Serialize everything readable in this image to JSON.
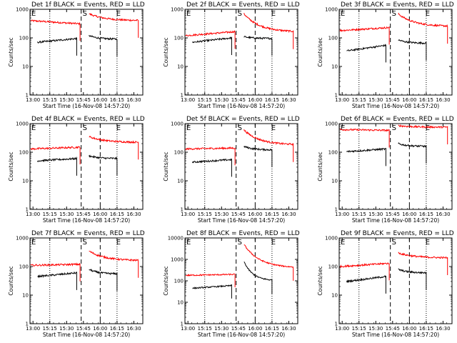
{
  "figure": {
    "background": "#ffffff",
    "event_color": "#000000",
    "lld_color": "#ff0000"
  },
  "chart_data": [
    {
      "type": "line",
      "title": "Det 1f BLACK = Events, RED = LLD",
      "xlabel": "Start Time (16-Nov-08 14:57:20)",
      "ylabel": "Counts/sec",
      "yscale": "log",
      "ylim": [
        1,
        1000
      ],
      "ytick_labels": [
        "1",
        "10",
        "100",
        "1000"
      ],
      "xtick_labels": [
        "13:00",
        "15:15",
        "15:30",
        "15:45",
        "16:00",
        "16:15",
        "16:30"
      ],
      "markers": [
        {
          "label": "E",
          "x": "14:57:20"
        },
        {
          "label": "S",
          "x": "15:43"
        },
        {
          "label": "E",
          "x": "16:13"
        }
      ],
      "series": [
        {
          "name": "RED = LLD",
          "color": "#ff0000",
          "segments": [
            [
              [
                "14:58",
                400
              ],
              [
                "15:42",
                310
              ]
            ],
            [
              [
                "15:50",
                700
              ],
              [
                "16:34",
                400
              ]
            ]
          ]
        },
        {
          "name": "BLACK = Events",
          "color": "#000000",
          "segments": [
            [
              [
                "15:04",
                70
              ],
              [
                "15:39",
                95
              ]
            ],
            [
              [
                "15:50",
                120
              ],
              [
                "16:15",
                90
              ]
            ]
          ]
        }
      ]
    },
    {
      "type": "line",
      "title": "Det 2f BLACK = Events, RED = LLD",
      "xlabel": "Start Time (16-Nov-08 14:57:20)",
      "ylabel": "Counts/sec",
      "yscale": "log",
      "ylim": [
        1,
        1000
      ],
      "ytick_labels": [
        "1",
        "10",
        "100",
        "1000"
      ],
      "xtick_labels": [
        "13:00",
        "15:15",
        "15:30",
        "15:45",
        "16:00",
        "16:15",
        "16:30"
      ],
      "markers": [
        {
          "label": "E",
          "x": "14:57:20"
        },
        {
          "label": "S",
          "x": "15:43"
        },
        {
          "label": "E",
          "x": "16:13"
        }
      ],
      "series": [
        {
          "name": "RED = LLD",
          "color": "#ff0000",
          "segments": [
            [
              [
                "14:58",
                120
              ],
              [
                "15:42",
                165
              ]
            ],
            [
              [
                "15:50",
                700
              ],
              [
                "16:34",
                160
              ]
            ]
          ]
        },
        {
          "name": "BLACK = Events",
          "color": "#000000",
          "segments": [
            [
              [
                "15:04",
                70
              ],
              [
                "15:39",
                100
              ]
            ],
            [
              [
                "15:50",
                110
              ],
              [
                "16:15",
                95
              ]
            ]
          ]
        }
      ]
    },
    {
      "type": "line",
      "title": "Det 3f BLACK = Events, RED = LLD",
      "xlabel": "Start Time (16-Nov-08 14:57:20)",
      "ylabel": "Counts/sec",
      "yscale": "log",
      "ylim": [
        1,
        1000
      ],
      "ytick_labels": [
        "1",
        "10",
        "100",
        "1000"
      ],
      "xtick_labels": [
        "13:00",
        "15:15",
        "15:30",
        "15:45",
        "16:00",
        "16:15",
        "16:30"
      ],
      "markers": [
        {
          "label": "E",
          "x": "14:57:20"
        },
        {
          "label": "S",
          "x": "15:43"
        },
        {
          "label": "E",
          "x": "16:13"
        }
      ],
      "series": [
        {
          "name": "RED = LLD",
          "color": "#ff0000",
          "segments": [
            [
              [
                "14:58",
                180
              ],
              [
                "15:42",
                230
              ]
            ],
            [
              [
                "15:50",
                700
              ],
              [
                "16:34",
                250
              ]
            ]
          ]
        },
        {
          "name": "BLACK = Events",
          "color": "#000000",
          "segments": [
            [
              [
                "15:04",
                35
              ],
              [
                "15:39",
                55
              ]
            ],
            [
              [
                "15:50",
                85
              ],
              [
                "16:15",
                65
              ]
            ]
          ]
        }
      ]
    },
    {
      "type": "line",
      "title": "Det 4f BLACK = Events, RED = LLD",
      "xlabel": "Start Time (16-Nov-08 14:57:20)",
      "ylabel": "Counts/sec",
      "yscale": "log",
      "ylim": [
        1,
        1000
      ],
      "ytick_labels": [
        "1",
        "10",
        "100",
        "1000"
      ],
      "xtick_labels": [
        "13:00",
        "15:15",
        "15:30",
        "15:45",
        "16:00",
        "16:15",
        "16:30"
      ],
      "markers": [
        {
          "label": "E",
          "x": "14:57:20"
        },
        {
          "label": "S",
          "x": "15:43"
        },
        {
          "label": "E",
          "x": "16:13"
        }
      ],
      "series": [
        {
          "name": "RED = LLD",
          "color": "#ff0000",
          "segments": [
            [
              [
                "14:58",
                130
              ],
              [
                "15:42",
                150
              ]
            ],
            [
              [
                "15:50",
                350
              ],
              [
                "16:34",
                220
              ]
            ]
          ]
        },
        {
          "name": "BLACK = Events",
          "color": "#000000",
          "segments": [
            [
              [
                "15:04",
                50
              ],
              [
                "15:39",
                60
              ]
            ],
            [
              [
                "15:50",
                75
              ],
              [
                "16:15",
                60
              ]
            ]
          ]
        }
      ]
    },
    {
      "type": "line",
      "title": "Det 5f BLACK = Events, RED = LLD",
      "xlabel": "Start Time (16-Nov-08 14:57:20)",
      "ylabel": "Counts/sec",
      "yscale": "log",
      "ylim": [
        1,
        1000
      ],
      "ytick_labels": [
        "1",
        "10",
        "100",
        "1000"
      ],
      "xtick_labels": [
        "13:00",
        "15:15",
        "15:30",
        "15:45",
        "16:00",
        "16:15",
        "16:30"
      ],
      "markers": [
        {
          "label": "E",
          "x": "14:57:20"
        },
        {
          "label": "S",
          "x": "15:43"
        },
        {
          "label": "E",
          "x": "16:13"
        }
      ],
      "series": [
        {
          "name": "RED = LLD",
          "color": "#ff0000",
          "segments": [
            [
              [
                "14:58",
                130
              ],
              [
                "15:42",
                140
              ]
            ],
            [
              [
                "15:50",
                600
              ],
              [
                "16:34",
                180
              ]
            ]
          ]
        },
        {
          "name": "BLACK = Events",
          "color": "#000000",
          "segments": [
            [
              [
                "15:04",
                45
              ],
              [
                "15:39",
                55
              ]
            ],
            [
              [
                "15:50",
                160
              ],
              [
                "16:15",
                120
              ]
            ]
          ]
        }
      ]
    },
    {
      "type": "line",
      "title": "Det 6f BLACK = Events, RED = LLD",
      "xlabel": "Start Time (16-Nov-08 14:57:20)",
      "ylabel": "Counts/sec",
      "yscale": "log",
      "ylim": [
        1,
        1000
      ],
      "ytick_labels": [
        "1",
        "10",
        "100",
        "1000"
      ],
      "xtick_labels": [
        "13:00",
        "15:15",
        "15:30",
        "15:45",
        "16:00",
        "16:15",
        "16:30"
      ],
      "markers": [
        {
          "label": "E",
          "x": "14:57:20"
        },
        {
          "label": "S",
          "x": "15:43"
        },
        {
          "label": "E",
          "x": "16:13"
        }
      ],
      "series": [
        {
          "name": "RED = LLD",
          "color": "#ff0000",
          "segments": [
            [
              [
                "14:58",
                620
              ],
              [
                "15:42",
                580
              ]
            ],
            [
              [
                "15:50",
                850
              ],
              [
                "16:34",
                750
              ]
            ]
          ]
        },
        {
          "name": "BLACK = Events",
          "color": "#000000",
          "segments": [
            [
              [
                "15:04",
                105
              ],
              [
                "15:39",
                130
              ]
            ],
            [
              [
                "15:50",
                200
              ],
              [
                "16:15",
                160
              ]
            ]
          ]
        }
      ]
    },
    {
      "type": "line",
      "title": "Det 7f BLACK = Events, RED = LLD",
      "xlabel": "Start Time (16-Nov-08 14:57:20)",
      "ylabel": "Counts/sec",
      "yscale": "log",
      "ylim": [
        1,
        1000
      ],
      "ytick_labels": [
        "1",
        "10",
        "100",
        "1000"
      ],
      "xtick_labels": [
        "13:00",
        "15:15",
        "15:30",
        "15:45",
        "16:00",
        "16:15",
        "16:30"
      ],
      "markers": [
        {
          "label": "E",
          "x": "14:57:20"
        },
        {
          "label": "S",
          "x": "15:43"
        },
        {
          "label": "E",
          "x": "16:13"
        }
      ],
      "series": [
        {
          "name": "RED = LLD",
          "color": "#ff0000",
          "segments": [
            [
              [
                "14:58",
                110
              ],
              [
                "15:42",
                120
              ]
            ],
            [
              [
                "15:50",
                350
              ],
              [
                "16:34",
                160
              ]
            ]
          ]
        },
        {
          "name": "BLACK = Events",
          "color": "#000000",
          "segments": [
            [
              [
                "15:04",
                45
              ],
              [
                "15:39",
                60
              ]
            ],
            [
              [
                "15:50",
                80
              ],
              [
                "16:15",
                55
              ]
            ]
          ]
        }
      ]
    },
    {
      "type": "line",
      "title": "Det 8f BLACK = Events, RED = LLD",
      "xlabel": "Start Time (16-Nov-08 14:57:20)",
      "ylabel": "Counts/sec",
      "yscale": "log",
      "ylim": [
        1,
        10000
      ],
      "ytick_labels": [
        "1",
        "10",
        "100",
        "1000",
        "10000"
      ],
      "xtick_labels": [
        "13:00",
        "15:15",
        "15:30",
        "15:45",
        "16:00",
        "16:15",
        "16:30"
      ],
      "markers": [
        {
          "label": "E",
          "x": "14:57:20"
        },
        {
          "label": "S",
          "x": "15:43"
        },
        {
          "label": "E",
          "x": "16:13"
        }
      ],
      "series": [
        {
          "name": "RED = LLD",
          "color": "#ff0000",
          "segments": [
            [
              [
                "14:58",
                180
              ],
              [
                "15:42",
                200
              ]
            ],
            [
              [
                "15:50",
                5000
              ],
              [
                "16:34",
                400
              ]
            ]
          ]
        },
        {
          "name": "BLACK = Events",
          "color": "#000000",
          "segments": [
            [
              [
                "15:04",
                45
              ],
              [
                "15:39",
                60
              ]
            ],
            [
              [
                "15:50",
                800
              ],
              [
                "16:15",
                100
              ]
            ]
          ]
        }
      ]
    },
    {
      "type": "line",
      "title": "Det 9f BLACK = Events, RED = LLD",
      "xlabel": "Start Time (16-Nov-08 14:57:20)",
      "ylabel": "Counts/sec",
      "yscale": "log",
      "ylim": [
        1,
        1000
      ],
      "ytick_labels": [
        "1",
        "10",
        "100",
        "1000"
      ],
      "xtick_labels": [
        "13:00",
        "15:15",
        "15:30",
        "15:45",
        "16:00",
        "16:15",
        "16:30"
      ],
      "markers": [
        {
          "label": "E",
          "x": "14:57:20"
        },
        {
          "label": "S",
          "x": "15:43"
        },
        {
          "label": "E",
          "x": "16:13"
        }
      ],
      "series": [
        {
          "name": "RED = LLD",
          "color": "#ff0000",
          "segments": [
            [
              [
                "14:58",
                100
              ],
              [
                "15:42",
                130
              ]
            ],
            [
              [
                "15:50",
                300
              ],
              [
                "16:34",
                200
              ]
            ]
          ]
        },
        {
          "name": "BLACK = Events",
          "color": "#000000",
          "segments": [
            [
              [
                "15:04",
                30
              ],
              [
                "15:39",
                45
              ]
            ],
            [
              [
                "15:50",
                80
              ],
              [
                "16:15",
                60
              ]
            ]
          ]
        }
      ]
    }
  ]
}
